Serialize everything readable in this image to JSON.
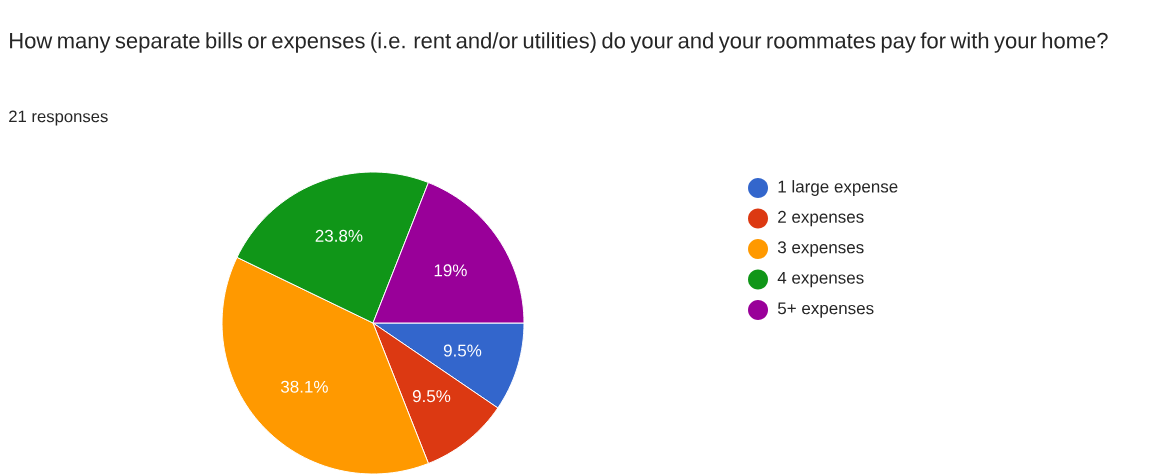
{
  "chart_data": {
    "type": "pie",
    "title": "How many separate bills or expenses (i.e. rent and/or utilities) do your and your roommates pay for with your home?",
    "subtitle": "21 responses",
    "categories": [
      "1 large expense",
      "2 expenses",
      "3 expenses",
      "4 expenses",
      "5+ expenses"
    ],
    "values": [
      9.5,
      9.5,
      38.1,
      23.8,
      19
    ],
    "colors": [
      "#3366cc",
      "#dc3912",
      "#ff9900",
      "#109618",
      "#990099"
    ],
    "value_labels": [
      "9.5%",
      "9.5%",
      "38.1%",
      "23.8%",
      "19%"
    ],
    "legend": "right"
  }
}
